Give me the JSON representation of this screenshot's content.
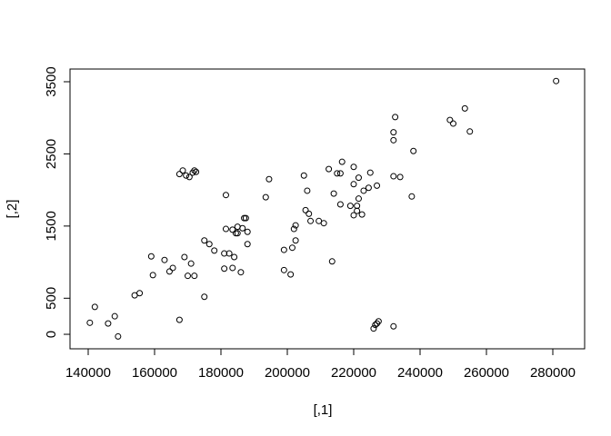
{
  "chart_data": {
    "type": "scatter",
    "x_label": "[,1]",
    "y_label": "[,2]",
    "x": [
      140500,
      142000,
      146000,
      148000,
      149000,
      154000,
      155500,
      159000,
      159500,
      163000,
      164500,
      165500,
      167500,
      168500,
      169000,
      169500,
      170000,
      170500,
      171000,
      172000,
      171500,
      172000,
      172500,
      175000,
      167500,
      175000,
      176500,
      178000,
      181000,
      181000,
      181500,
      181500,
      182500,
      183500,
      183500,
      184000,
      184500,
      185000,
      185000,
      186000,
      186500,
      187000,
      187500,
      188000,
      188000,
      193500,
      194500,
      199000,
      199000,
      201000,
      201500,
      202000,
      202500,
      202500,
      205000,
      206000,
      205500,
      206500,
      207000,
      209500,
      211000,
      213500,
      212500,
      214000,
      215000,
      216000,
      216000,
      216500,
      219000,
      220000,
      220000,
      220000,
      221000,
      221000,
      221500,
      221500,
      222500,
      223000,
      224500,
      225000,
      227000,
      226000,
      226500,
      227000,
      227500,
      232000,
      232000,
      232000,
      232500,
      234000,
      238000,
      237500,
      249000,
      250000,
      253500,
      255000,
      281000,
      232000
    ],
    "values": [
      160,
      380,
      150,
      250,
      -30,
      540,
      570,
      1080,
      820,
      1030,
      870,
      920,
      2220,
      2270,
      1070,
      2200,
      810,
      2180,
      980,
      810,
      2240,
      2270,
      2250,
      520,
      200,
      1300,
      1250,
      1160,
      1120,
      910,
      1930,
      1460,
      1120,
      920,
      1450,
      1070,
      1400,
      1490,
      1400,
      860,
      1470,
      1610,
      1610,
      1420,
      1250,
      1900,
      2150,
      1170,
      890,
      830,
      1200,
      1460,
      1510,
      1300,
      2200,
      1990,
      1720,
      1670,
      1570,
      1570,
      1540,
      1010,
      2290,
      1950,
      2230,
      2230,
      1800,
      2390,
      1780,
      1650,
      2320,
      2080,
      1780,
      1710,
      1880,
      2170,
      1660,
      1990,
      2030,
      2240,
      2060,
      80,
      130,
      150,
      180,
      2690,
      2800,
      2190,
      3010,
      2180,
      2540,
      1910,
      2970,
      2920,
      3130,
      2810,
      3510,
      110
    ],
    "xlim": [
      134521,
      289589
    ],
    "ylim": [
      -201,
      3676
    ],
    "xticks": [
      140000,
      160000,
      180000,
      200000,
      220000,
      240000,
      260000,
      280000
    ],
    "yticks": [
      0,
      500,
      1500,
      2500,
      3500
    ],
    "color": "#000000"
  }
}
